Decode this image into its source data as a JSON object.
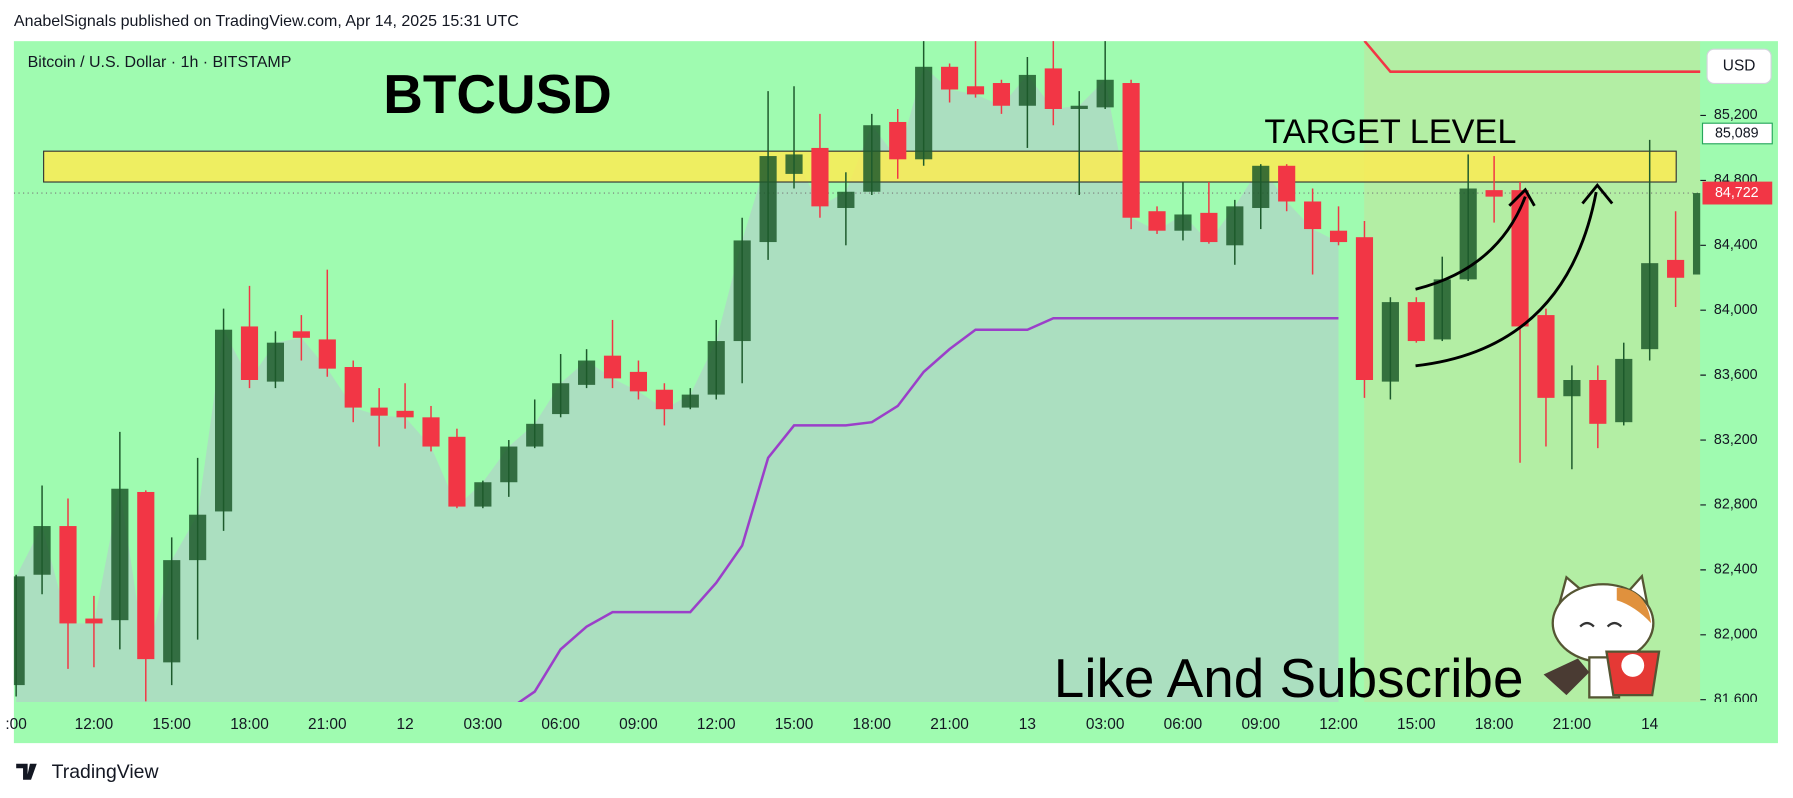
{
  "header": "AnabelSignals published on TradingView.com, Apr 14, 2025 15:31 UTC",
  "footer": "TradingView",
  "chart_data": {
    "type": "candlestick",
    "title": "Bitcoin / U.S. Dollar · 1h · BITSTAMP",
    "currency": "USD",
    "annotations": [
      "BTCUSD",
      "TARGET LEVEL",
      "Like And Subscribe"
    ],
    "categories": [
      ":00",
      null,
      null,
      "12:00",
      null,
      null,
      "15:00",
      null,
      null,
      "18:00",
      null,
      null,
      "21:00",
      null,
      null,
      "12",
      null,
      null,
      "03:00",
      null,
      null,
      "06:00",
      null,
      null,
      "09:00",
      null,
      null,
      "12:00",
      null,
      null,
      "15:00",
      null,
      null,
      "18:00",
      null,
      null,
      "21:00",
      null,
      null,
      "13",
      null,
      null,
      "03:00",
      null,
      null,
      "06:00",
      null,
      null,
      "09:00",
      null,
      null,
      "12:00",
      null,
      null,
      "15:00",
      null,
      null,
      "18:00",
      null,
      null,
      "21:00",
      null,
      null,
      "14",
      null,
      null
    ],
    "candles": {
      "open": [
        81690,
        82370,
        82670,
        82100,
        82090,
        82880,
        81830,
        82460,
        82760,
        83900,
        83560,
        83870,
        83820,
        83650,
        83400,
        83380,
        83340,
        83220,
        82790,
        82940,
        83160,
        83360,
        83540,
        83720,
        83620,
        83510,
        83400,
        83480,
        83810,
        84420,
        84840,
        85000,
        84630,
        84730,
        85160,
        84930,
        85500,
        85380,
        85400,
        85260,
        85490,
        85240,
        85250,
        85400,
        84610,
        84490,
        84600,
        84400,
        84630,
        84890,
        84670,
        84490,
        84450,
        83560,
        84050,
        83820,
        84190,
        84740,
        84740,
        83970,
        83470,
        83570,
        83310,
        83760,
        84310,
        84220
      ],
      "high": [
        82370,
        82920,
        82840,
        82240,
        83250,
        82890,
        82600,
        83090,
        84010,
        84150,
        83870,
        83970,
        84250,
        83690,
        83520,
        83550,
        83410,
        83270,
        82950,
        83200,
        83450,
        83730,
        83760,
        83940,
        83690,
        83550,
        83520,
        83940,
        84570,
        85350,
        85380,
        85210,
        84850,
        85210,
        85240,
        85700,
        85520,
        85700,
        85420,
        85560,
        85700,
        85350,
        85700,
        85420,
        84640,
        84790,
        84790,
        84680,
        84900,
        84900,
        84750,
        84640,
        84550,
        84080,
        84080,
        84330,
        84960,
        84950,
        84790,
        84010,
        83660,
        83660,
        83800,
        85050,
        84610,
        85080
      ],
      "low": [
        81620,
        82250,
        81790,
        81800,
        81910,
        81590,
        81690,
        81970,
        82640,
        83520,
        83520,
        83690,
        83590,
        83310,
        83160,
        83270,
        83130,
        82780,
        82780,
        82850,
        83150,
        83340,
        83520,
        83520,
        83450,
        83290,
        83390,
        83450,
        83550,
        84310,
        84750,
        84570,
        84400,
        84710,
        84810,
        84890,
        85280,
        85310,
        85210,
        85000,
        85140,
        84710,
        85240,
        84500,
        84470,
        84430,
        84410,
        84280,
        84500,
        84610,
        84220,
        84400,
        83460,
        83450,
        83800,
        83810,
        84180,
        84540,
        83060,
        83160,
        83020,
        83150,
        83290,
        83690,
        84020,
        84210
      ],
      "close": [
        82360,
        82670,
        82070,
        82070,
        82900,
        81850,
        82460,
        82740,
        83880,
        83570,
        83800,
        83830,
        83640,
        83400,
        83350,
        83340,
        83160,
        82790,
        82940,
        83160,
        83300,
        83550,
        83690,
        83580,
        83500,
        83390,
        83480,
        83810,
        84430,
        84950,
        84960,
        84640,
        84730,
        85140,
        84930,
        85500,
        85360,
        85330,
        85260,
        85450,
        85240,
        85260,
        85420,
        84570,
        84490,
        84590,
        84420,
        84640,
        84890,
        84670,
        84500,
        84420,
        83570,
        84050,
        83810,
        84190,
        84750,
        84700,
        83900,
        83460,
        83570,
        83300,
        83700,
        84290,
        84200,
        84722
      ]
    },
    "up_color": "#1d5a2c",
    "down_color": "#f23645",
    "overlays": [
      {
        "type": "area",
        "color": "#abdfc0",
        "values": [
          82360,
          82670,
          82070,
          82070,
          82900,
          81850,
          82460,
          82740,
          83880,
          83570,
          83800,
          83830,
          83640,
          83400,
          83350,
          83340,
          83160,
          82790,
          82940,
          83160,
          83300,
          83550,
          83690,
          83580,
          83500,
          83390,
          83480,
          83810,
          84430,
          84950,
          84960,
          84640,
          84730,
          85140,
          84930,
          85500,
          85360,
          85330,
          85260,
          85450,
          85240,
          85260,
          85420,
          84570,
          84490,
          84590,
          84420,
          84640,
          84890,
          84670,
          84500,
          84420,
          null,
          null,
          null,
          null,
          null,
          null,
          null,
          null,
          null,
          null,
          null,
          null,
          null,
          null
        ]
      },
      {
        "type": "line",
        "color": "#9b3fc9",
        "values": [
          null,
          null,
          null,
          null,
          null,
          null,
          null,
          null,
          null,
          null,
          null,
          null,
          null,
          null,
          null,
          null,
          null,
          null,
          null,
          81540,
          81650,
          81910,
          82050,
          82140,
          82140,
          82140,
          82140,
          82320,
          82550,
          83090,
          83290,
          83290,
          83290,
          83310,
          83410,
          83620,
          83760,
          83880,
          83880,
          83880,
          83950,
          83950,
          83950,
          83950,
          83950,
          83950,
          83950,
          83950,
          83950,
          83950,
          83950,
          83950,
          null,
          null,
          null,
          null,
          null,
          null,
          null,
          null,
          null,
          null,
          null,
          null,
          null,
          null
        ]
      },
      {
        "type": "line",
        "color": "#f23645",
        "values": [
          null,
          null,
          null,
          null,
          null,
          null,
          null,
          null,
          null,
          null,
          null,
          null,
          null,
          null,
          null,
          null,
          null,
          null,
          null,
          null,
          null,
          null,
          null,
          null,
          null,
          null,
          null,
          null,
          null,
          null,
          null,
          null,
          null,
          null,
          null,
          null,
          null,
          null,
          null,
          null,
          null,
          null,
          null,
          null,
          null,
          null,
          null,
          null,
          null,
          null,
          null,
          null,
          85660,
          85470,
          85470,
          85470,
          85470,
          85470,
          85470,
          85470,
          85470,
          85470,
          85470,
          85470,
          85470,
          85470
        ]
      }
    ],
    "target_zone": {
      "low": 84790,
      "high": 84980,
      "color": "#f9ec55"
    },
    "price_marker": {
      "value": 85089,
      "label": "85,089"
    },
    "last_price": {
      "value": 84722,
      "label": "84,722",
      "color": "#f23645"
    },
    "ylim": [
      81586,
      85658
    ],
    "yticks": [
      {
        "value": 85200,
        "label": "85,200"
      },
      {
        "value": 84800,
        "label": "84,800"
      },
      {
        "value": 84400,
        "label": "84,400"
      },
      {
        "value": 84000,
        "label": "84,000"
      },
      {
        "value": 83600,
        "label": "83,600"
      },
      {
        "value": 83200,
        "label": "83,200"
      },
      {
        "value": 82800,
        "label": "82,800"
      },
      {
        "value": 82400,
        "label": "82,400"
      },
      {
        "value": 82000,
        "label": "82,000"
      },
      {
        "value": 81600,
        "label": "81,600"
      }
    ],
    "background": "#9ffbb0"
  }
}
